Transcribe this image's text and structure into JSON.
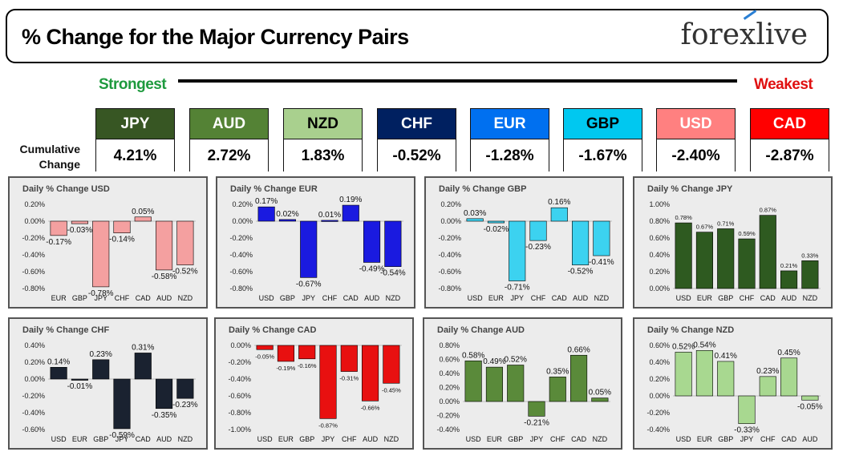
{
  "header": {
    "title": "% Change for the Major Currency Pairs",
    "logo_text": "forexlive"
  },
  "ranking": {
    "strongest_label": "Strongest",
    "weakest_label": "Weakest",
    "cumulative_label_line1": "Cumulative",
    "cumulative_label_line2": "Change",
    "currencies": [
      {
        "code": "JPY",
        "value": "4.21%",
        "color": "#375623",
        "text_color": "#ffffff"
      },
      {
        "code": "AUD",
        "value": "2.72%",
        "color": "#548235",
        "text_color": "#ffffff"
      },
      {
        "code": "NZD",
        "value": "1.83%",
        "color": "#a9d08e",
        "text_color": "#000000"
      },
      {
        "code": "CHF",
        "value": "-0.52%",
        "color": "#002060",
        "text_color": "#ffffff"
      },
      {
        "code": "EUR",
        "value": "-1.28%",
        "color": "#0070f0",
        "text_color": "#ffffff"
      },
      {
        "code": "GBP",
        "value": "-1.67%",
        "color": "#00c8f0",
        "text_color": "#000000"
      },
      {
        "code": "USD",
        "value": "-2.40%",
        "color": "#ff8080",
        "text_color": "#ffffff"
      },
      {
        "code": "CAD",
        "value": "-2.87%",
        "color": "#ff0000",
        "text_color": "#ffffff"
      }
    ]
  },
  "chart_data": [
    {
      "type": "bar",
      "title": "Daily % Change USD",
      "categories": [
        "EUR",
        "GBP",
        "JPY",
        "CHF",
        "CAD",
        "AUD",
        "NZD"
      ],
      "values": [
        -0.17,
        -0.03,
        -0.78,
        -0.14,
        0.05,
        -0.58,
        -0.52
      ],
      "labels": [
        "-0.17%",
        "-0.03%",
        "-0.78%",
        "-0.14%",
        "0.05%",
        "-0.58%",
        "-0.52%"
      ],
      "ylim": [
        -0.8,
        0.2
      ],
      "yticks": [
        "0.20%",
        "0.00%",
        "-0.20%",
        "-0.40%",
        "-0.60%",
        "-0.80%"
      ],
      "tick_values": [
        0.2,
        0,
        -0.2,
        -0.4,
        -0.6,
        -0.8
      ],
      "color": "#f4a0a0"
    },
    {
      "type": "bar",
      "title": "Daily % Change EUR",
      "categories": [
        "USD",
        "GBP",
        "JPY",
        "CHF",
        "CAD",
        "AUD",
        "NZD"
      ],
      "values": [
        0.17,
        0.02,
        -0.67,
        0.01,
        0.19,
        -0.49,
        -0.54
      ],
      "labels": [
        "0.17%",
        "0.02%",
        "-0.67%",
        "0.01%",
        "0.19%",
        "-0.49%",
        "-0.54%"
      ],
      "ylim": [
        -0.8,
        0.2
      ],
      "yticks": [
        "0.20%",
        "0.00%",
        "-0.20%",
        "-0.40%",
        "-0.60%",
        "-0.80%"
      ],
      "tick_values": [
        0.2,
        0,
        -0.2,
        -0.4,
        -0.6,
        -0.8
      ],
      "color": "#1a1ae0"
    },
    {
      "type": "bar",
      "title": "Daily % Change GBP",
      "categories": [
        "USD",
        "EUR",
        "JPY",
        "CHF",
        "CAD",
        "AUD",
        "NZD"
      ],
      "values": [
        0.03,
        -0.02,
        -0.71,
        -0.23,
        0.16,
        -0.52,
        -0.41
      ],
      "labels": [
        "0.03%",
        "-0.02%",
        "-0.71%",
        "-0.23%",
        "0.16%",
        "-0.52%",
        "-0.41%"
      ],
      "ylim": [
        -0.8,
        0.2
      ],
      "yticks": [
        "0.20%",
        "0.00%",
        "-0.20%",
        "-0.40%",
        "-0.60%",
        "-0.80%"
      ],
      "tick_values": [
        0.2,
        0,
        -0.2,
        -0.4,
        -0.6,
        -0.8
      ],
      "color": "#3cd2f0"
    },
    {
      "type": "bar",
      "title": "Daily % Change JPY",
      "categories": [
        "USD",
        "EUR",
        "GBP",
        "CHF",
        "CAD",
        "AUD",
        "NZD"
      ],
      "values": [
        0.78,
        0.67,
        0.71,
        0.59,
        0.87,
        0.21,
        0.33
      ],
      "labels": [
        "0.78%",
        "0.67%",
        "0.71%",
        "0.59%",
        "0.87%",
        "0.21%",
        "0.33%"
      ],
      "ylim": [
        0,
        1.0
      ],
      "yticks": [
        "1.00%",
        "0.80%",
        "0.60%",
        "0.40%",
        "0.20%",
        "0.00%"
      ],
      "tick_values": [
        1.0,
        0.8,
        0.6,
        0.4,
        0.2,
        0
      ],
      "color": "#2e5a20"
    },
    {
      "type": "bar",
      "title": "Daily % Change CHF",
      "categories": [
        "USD",
        "EUR",
        "GBP",
        "JPY",
        "CAD",
        "AUD",
        "NZD"
      ],
      "values": [
        0.14,
        -0.01,
        0.23,
        -0.59,
        0.31,
        -0.35,
        -0.23
      ],
      "labels": [
        "0.14%",
        "-0.01%",
        "0.23%",
        "-0.59%",
        "0.31%",
        "-0.35%",
        "-0.23%"
      ],
      "ylim": [
        -0.6,
        0.4
      ],
      "yticks": [
        "0.40%",
        "0.20%",
        "0.00%",
        "-0.20%",
        "-0.40%",
        "-0.60%"
      ],
      "tick_values": [
        0.4,
        0.2,
        0,
        -0.2,
        -0.4,
        -0.6
      ],
      "color": "#1a2230"
    },
    {
      "type": "bar",
      "title": "Daily % Change CAD",
      "categories": [
        "USD",
        "EUR",
        "GBP",
        "JPY",
        "CHF",
        "AUD",
        "NZD"
      ],
      "values": [
        -0.05,
        -0.19,
        -0.16,
        -0.87,
        -0.31,
        -0.66,
        -0.45
      ],
      "labels": [
        "-0.05%",
        "-0.19%",
        "-0.16%",
        "-0.87%",
        "-0.31%",
        "-0.66%",
        "-0.45%"
      ],
      "ylim": [
        -1.0,
        0
      ],
      "yticks": [
        "0.00%",
        "-0.20%",
        "-0.40%",
        "-0.60%",
        "-0.80%",
        "-1.00%"
      ],
      "tick_values": [
        0,
        -0.2,
        -0.4,
        -0.6,
        -0.8,
        -1.0
      ],
      "color": "#e81010"
    },
    {
      "type": "bar",
      "title": "Daily % Change AUD",
      "categories": [
        "USD",
        "EUR",
        "GBP",
        "JPY",
        "CHF",
        "CAD",
        "NZD"
      ],
      "values": [
        0.58,
        0.49,
        0.52,
        -0.21,
        0.35,
        0.66,
        0.05
      ],
      "labels": [
        "0.58%",
        "0.49%",
        "0.52%",
        "-0.21%",
        "0.35%",
        "0.66%",
        "0.05%"
      ],
      "ylim": [
        -0.4,
        0.8
      ],
      "yticks": [
        "0.80%",
        "0.60%",
        "0.40%",
        "0.20%",
        "0.00%",
        "-0.20%",
        "-0.40%"
      ],
      "tick_values": [
        0.8,
        0.6,
        0.4,
        0.2,
        0,
        -0.2,
        -0.4
      ],
      "color": "#5a8a3a"
    },
    {
      "type": "bar",
      "title": "Daily % Change NZD",
      "categories": [
        "USD",
        "EUR",
        "GBP",
        "JPY",
        "CHF",
        "CAD",
        "AUD"
      ],
      "values": [
        0.52,
        0.54,
        0.41,
        -0.33,
        0.23,
        0.45,
        -0.05
      ],
      "labels": [
        "0.52%",
        "0.54%",
        "0.41%",
        "-0.33%",
        "0.23%",
        "0.45%",
        "-0.05%"
      ],
      "ylim": [
        -0.4,
        0.6
      ],
      "yticks": [
        "0.60%",
        "0.40%",
        "0.20%",
        "0.00%",
        "-0.20%",
        "-0.40%"
      ],
      "tick_values": [
        0.6,
        0.4,
        0.2,
        0,
        -0.2,
        -0.4
      ],
      "color": "#a8d890"
    }
  ]
}
